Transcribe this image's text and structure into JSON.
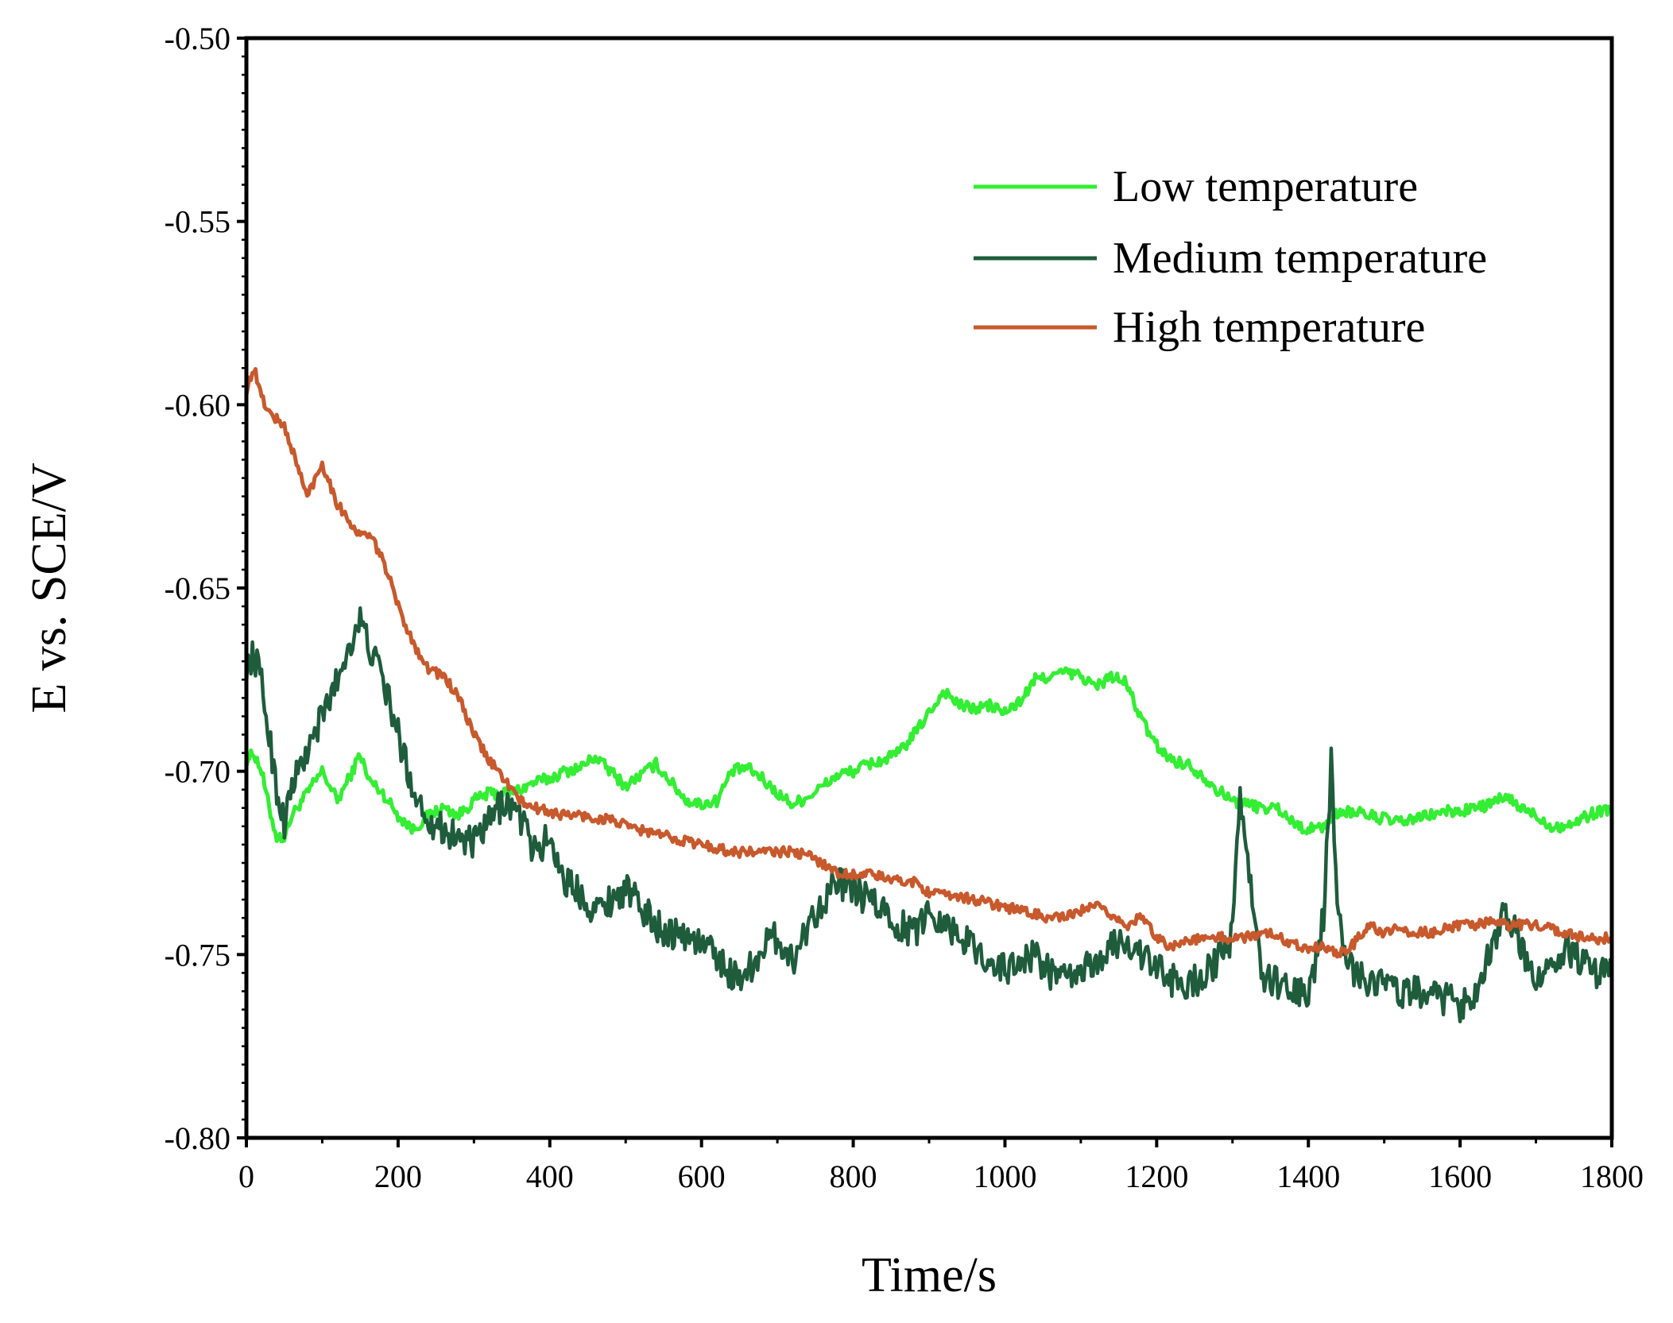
{
  "chart_data": {
    "type": "line",
    "xlabel": "Time/s",
    "ylabel": "E vs. SCE/V",
    "xlim": [
      0,
      1800
    ],
    "ylim": [
      -0.8,
      -0.5
    ],
    "xticks": [
      0,
      200,
      400,
      600,
      800,
      1000,
      1200,
      1400,
      1600,
      1800
    ],
    "xtick_labels": [
      "0",
      "200",
      "400",
      "600",
      "800",
      "1000",
      "1200",
      "1400",
      "1600",
      "1800"
    ],
    "yticks": [
      -0.8,
      -0.75,
      -0.7,
      -0.65,
      -0.6,
      -0.55,
      -0.5
    ],
    "ytick_labels": [
      "-0.80",
      "-0.75",
      "-0.70",
      "-0.65",
      "-0.60",
      "-0.55",
      "-0.50"
    ],
    "legend_position": "top-right",
    "series": [
      {
        "name": "Low temperature",
        "color": "#33ee33",
        "x": [
          0,
          10,
          20,
          30,
          40,
          50,
          60,
          80,
          100,
          120,
          140,
          150,
          160,
          180,
          200,
          220,
          240,
          260,
          280,
          300,
          320,
          340,
          360,
          380,
          400,
          420,
          440,
          460,
          480,
          500,
          520,
          540,
          560,
          580,
          600,
          620,
          640,
          660,
          680,
          700,
          720,
          740,
          760,
          780,
          800,
          820,
          840,
          860,
          880,
          900,
          920,
          940,
          960,
          980,
          1000,
          1020,
          1040,
          1060,
          1080,
          1100,
          1120,
          1140,
          1160,
          1180,
          1200,
          1220,
          1240,
          1260,
          1280,
          1300,
          1320,
          1340,
          1360,
          1380,
          1400,
          1420,
          1440,
          1460,
          1480,
          1500,
          1520,
          1540,
          1560,
          1580,
          1600,
          1620,
          1640,
          1660,
          1680,
          1700,
          1720,
          1740,
          1760,
          1780,
          1800
        ],
        "y": [
          -0.697,
          -0.695,
          -0.7,
          -0.71,
          -0.718,
          -0.718,
          -0.712,
          -0.706,
          -0.7,
          -0.708,
          -0.7,
          -0.695,
          -0.702,
          -0.706,
          -0.712,
          -0.716,
          -0.712,
          -0.71,
          -0.712,
          -0.708,
          -0.706,
          -0.706,
          -0.705,
          -0.703,
          -0.702,
          -0.7,
          -0.699,
          -0.696,
          -0.7,
          -0.704,
          -0.701,
          -0.698,
          -0.703,
          -0.708,
          -0.709,
          -0.708,
          -0.7,
          -0.699,
          -0.702,
          -0.706,
          -0.709,
          -0.707,
          -0.704,
          -0.701,
          -0.7,
          -0.698,
          -0.697,
          -0.695,
          -0.69,
          -0.684,
          -0.678,
          -0.682,
          -0.683,
          -0.682,
          -0.684,
          -0.681,
          -0.675,
          -0.674,
          -0.673,
          -0.674,
          -0.677,
          -0.674,
          -0.676,
          -0.686,
          -0.693,
          -0.697,
          -0.698,
          -0.701,
          -0.705,
          -0.708,
          -0.709,
          -0.71,
          -0.71,
          -0.714,
          -0.716,
          -0.715,
          -0.711,
          -0.711,
          -0.712,
          -0.713,
          -0.714,
          -0.713,
          -0.712,
          -0.711,
          -0.711,
          -0.71,
          -0.709,
          -0.707,
          -0.71,
          -0.712,
          -0.715,
          -0.715,
          -0.713,
          -0.711,
          -0.71
        ]
      },
      {
        "name": "Medium temperature",
        "color": "#1e5c3c",
        "x": [
          0,
          10,
          20,
          30,
          40,
          50,
          60,
          80,
          100,
          120,
          140,
          150,
          160,
          180,
          200,
          220,
          240,
          260,
          280,
          300,
          320,
          340,
          360,
          380,
          400,
          420,
          440,
          460,
          480,
          500,
          520,
          540,
          560,
          580,
          600,
          620,
          640,
          660,
          680,
          700,
          720,
          740,
          760,
          780,
          800,
          820,
          840,
          860,
          880,
          900,
          920,
          940,
          960,
          980,
          1000,
          1020,
          1040,
          1060,
          1080,
          1100,
          1120,
          1140,
          1160,
          1180,
          1200,
          1220,
          1240,
          1260,
          1280,
          1300,
          1310,
          1320,
          1340,
          1360,
          1380,
          1400,
          1420,
          1430,
          1440,
          1460,
          1480,
          1500,
          1520,
          1540,
          1560,
          1580,
          1600,
          1620,
          1640,
          1660,
          1680,
          1700,
          1720,
          1740,
          1760,
          1780,
          1800
        ],
        "y": [
          -0.672,
          -0.668,
          -0.676,
          -0.69,
          -0.705,
          -0.714,
          -0.704,
          -0.695,
          -0.685,
          -0.675,
          -0.663,
          -0.659,
          -0.665,
          -0.675,
          -0.69,
          -0.705,
          -0.713,
          -0.716,
          -0.718,
          -0.72,
          -0.714,
          -0.708,
          -0.712,
          -0.722,
          -0.718,
          -0.73,
          -0.733,
          -0.738,
          -0.735,
          -0.732,
          -0.737,
          -0.742,
          -0.744,
          -0.745,
          -0.747,
          -0.75,
          -0.756,
          -0.755,
          -0.748,
          -0.745,
          -0.752,
          -0.742,
          -0.735,
          -0.73,
          -0.733,
          -0.735,
          -0.738,
          -0.742,
          -0.744,
          -0.738,
          -0.741,
          -0.745,
          -0.748,
          -0.752,
          -0.754,
          -0.752,
          -0.75,
          -0.755,
          -0.757,
          -0.755,
          -0.752,
          -0.748,
          -0.746,
          -0.75,
          -0.754,
          -0.757,
          -0.758,
          -0.756,
          -0.752,
          -0.745,
          -0.704,
          -0.726,
          -0.756,
          -0.758,
          -0.76,
          -0.762,
          -0.74,
          -0.698,
          -0.742,
          -0.755,
          -0.757,
          -0.758,
          -0.76,
          -0.76,
          -0.762,
          -0.762,
          -0.764,
          -0.76,
          -0.748,
          -0.738,
          -0.748,
          -0.756,
          -0.754,
          -0.748,
          -0.752,
          -0.756,
          -0.754
        ]
      },
      {
        "name": "High temperature",
        "color": "#c8592c",
        "x": [
          0,
          10,
          20,
          30,
          40,
          50,
          60,
          80,
          100,
          120,
          140,
          150,
          160,
          180,
          200,
          220,
          240,
          260,
          280,
          300,
          320,
          340,
          360,
          380,
          400,
          420,
          440,
          460,
          480,
          500,
          520,
          540,
          560,
          580,
          600,
          620,
          640,
          660,
          680,
          700,
          720,
          740,
          760,
          780,
          800,
          820,
          840,
          860,
          880,
          900,
          920,
          940,
          960,
          980,
          1000,
          1020,
          1040,
          1060,
          1080,
          1100,
          1120,
          1140,
          1160,
          1180,
          1200,
          1220,
          1240,
          1260,
          1280,
          1300,
          1320,
          1340,
          1360,
          1380,
          1400,
          1420,
          1440,
          1460,
          1480,
          1500,
          1520,
          1540,
          1560,
          1580,
          1600,
          1620,
          1640,
          1660,
          1680,
          1700,
          1720,
          1740,
          1760,
          1780,
          1800
        ],
        "y": [
          -0.596,
          -0.59,
          -0.598,
          -0.602,
          -0.604,
          -0.606,
          -0.612,
          -0.625,
          -0.616,
          -0.627,
          -0.633,
          -0.636,
          -0.635,
          -0.642,
          -0.655,
          -0.665,
          -0.672,
          -0.674,
          -0.68,
          -0.69,
          -0.697,
          -0.702,
          -0.708,
          -0.71,
          -0.711,
          -0.712,
          -0.712,
          -0.713,
          -0.713,
          -0.715,
          -0.716,
          -0.717,
          -0.718,
          -0.719,
          -0.72,
          -0.721,
          -0.722,
          -0.722,
          -0.722,
          -0.722,
          -0.722,
          -0.723,
          -0.725,
          -0.728,
          -0.728,
          -0.728,
          -0.729,
          -0.73,
          -0.73,
          -0.733,
          -0.734,
          -0.734,
          -0.735,
          -0.736,
          -0.737,
          -0.738,
          -0.739,
          -0.74,
          -0.74,
          -0.738,
          -0.737,
          -0.739,
          -0.742,
          -0.74,
          -0.745,
          -0.748,
          -0.746,
          -0.746,
          -0.745,
          -0.746,
          -0.745,
          -0.744,
          -0.745,
          -0.747,
          -0.748,
          -0.748,
          -0.75,
          -0.747,
          -0.742,
          -0.744,
          -0.743,
          -0.744,
          -0.744,
          -0.743,
          -0.742,
          -0.742,
          -0.741,
          -0.742,
          -0.742,
          -0.742,
          -0.743,
          -0.744,
          -0.745,
          -0.746,
          -0.745
        ]
      }
    ]
  }
}
